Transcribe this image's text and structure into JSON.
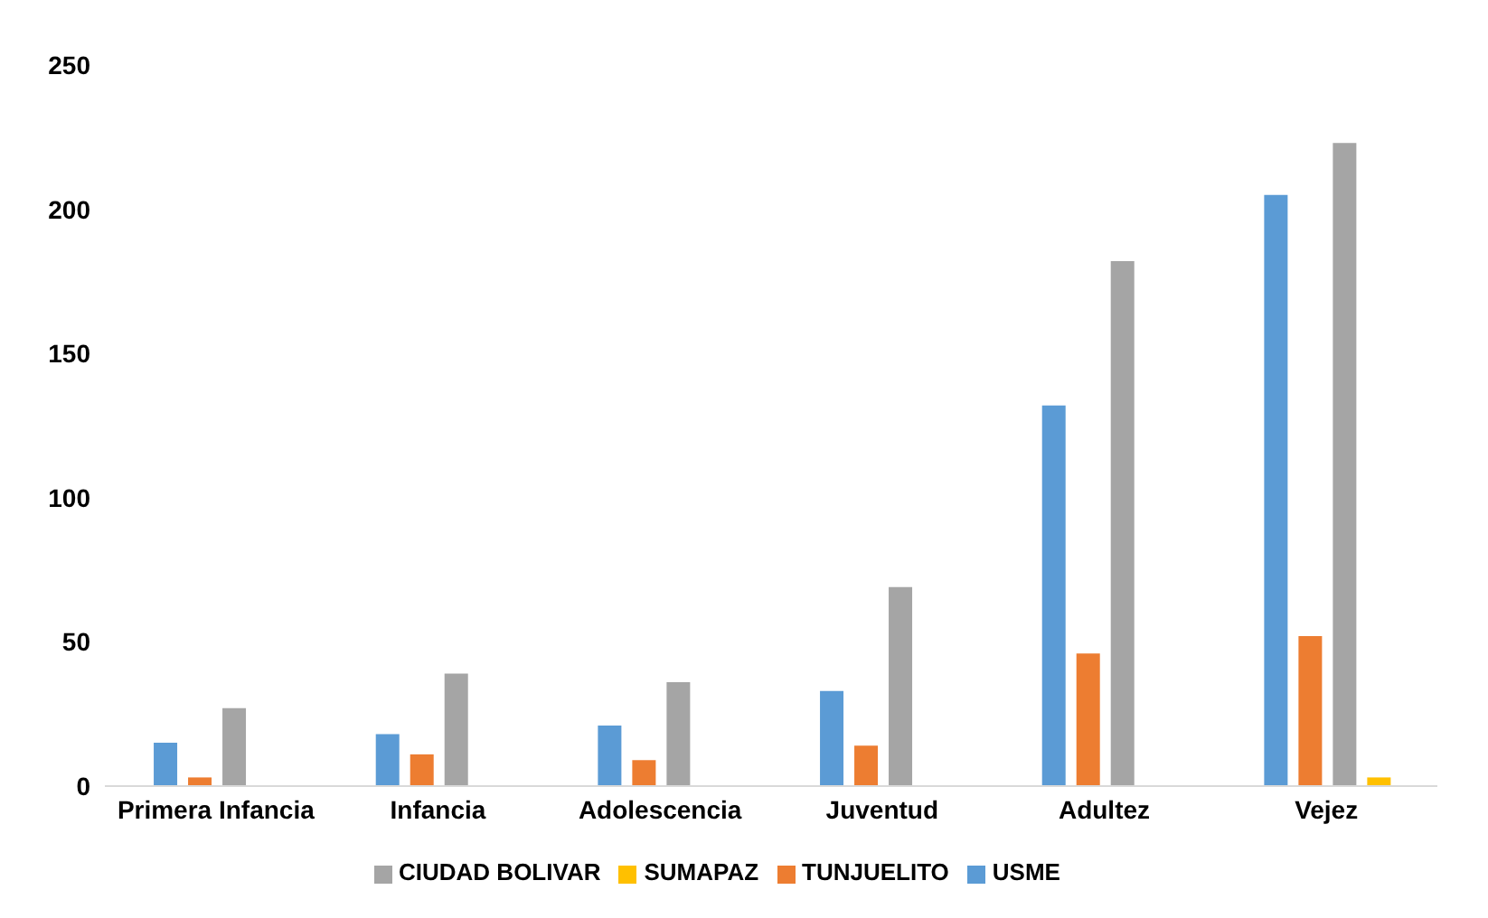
{
  "chart_data": {
    "type": "bar",
    "categories": [
      "Primera Infancia",
      "Infancia",
      "Adolescencia",
      "Juventud",
      "Adultez",
      "Vejez"
    ],
    "series": [
      {
        "name": "USME",
        "color": "#5b9bd5",
        "values": [
          15,
          18,
          21,
          33,
          132,
          205
        ]
      },
      {
        "name": "TUNJUELITO",
        "color": "#ed7d31",
        "values": [
          3,
          11,
          9,
          14,
          46,
          52
        ]
      },
      {
        "name": "CIUDAD BOLIVAR",
        "color": "#a5a5a5",
        "values": [
          27,
          39,
          36,
          69,
          182,
          223
        ]
      },
      {
        "name": "SUMAPAZ",
        "color": "#ffc000",
        "values": [
          0,
          0,
          0,
          0,
          0,
          3
        ]
      }
    ],
    "ylim": [
      0,
      250
    ],
    "yticks": [
      0,
      50,
      100,
      150,
      200,
      250
    ],
    "grid": false,
    "legend": "bottom"
  }
}
